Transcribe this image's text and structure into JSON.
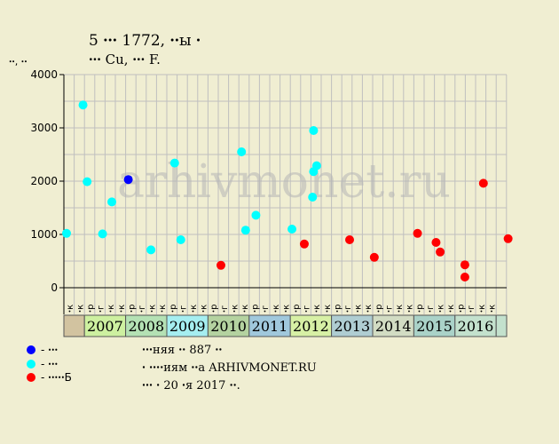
{
  "header": {
    "title": "5 ꞏꞏꞏ 1772, ꞏꞏы ꞏ",
    "subtitle": "ꞏꞏꞏ Cu, ꞏꞏꞏ F."
  },
  "watermark": "arhivmonet.ru",
  "legend": [
    {
      "label": "- ꞏꞏꞏ",
      "color": "#0000ff"
    },
    {
      "label": "- ꞏꞏꞏ",
      "color": "#00ffff"
    },
    {
      "label": "- ꞏꞏꞏꞏꞏБ",
      "color": "#ff0000"
    }
  ],
  "notes": [
    "ꞏꞏꞏняя ꞏꞏ 887 ꞏꞏ",
    "ꞏ ꞏꞏꞏꞏиям ꞏꞏа ARHIVMONET.RU",
    "ꞏꞏꞏ ꞏ 20 ꞏя 2017 ꞏꞏ."
  ],
  "chart_data": {
    "type": "scatter",
    "ylabel": "ꞏꞏ, ꞏꞏ",
    "ylim": [
      0,
      4000
    ],
    "yticks": [
      0,
      1000,
      2000,
      3000,
      4000
    ],
    "grid": true,
    "columns": [
      "ꞏк",
      "ꞏк",
      "ꞏр",
      "ꞏг",
      "ꞏк",
      "ꞏк",
      "ꞏр",
      "ꞏг",
      "ꞏк",
      "ꞏк",
      "ꞏр",
      "ꞏг",
      "ꞏк",
      "ꞏк",
      "ꞏр",
      "ꞏг",
      "ꞏк",
      "ꞏк",
      "ꞏр",
      "ꞏг",
      "ꞏк",
      "ꞏк",
      "ꞏр",
      "ꞏг",
      "ꞏк",
      "ꞏк",
      "ꞏр",
      "ꞏг",
      "ꞏк",
      "ꞏк",
      "ꞏр",
      "ꞏг",
      "ꞏк",
      "ꞏк",
      "ꞏр",
      "ꞏг",
      "ꞏк",
      "ꞏк",
      "ꞏр",
      "ꞏг",
      "ꞏк",
      "ꞏк"
    ],
    "years": [
      {
        "label": "",
        "start": 0,
        "span": 1,
        "color": "#d2c3a0"
      },
      {
        "label": "2007",
        "start": 1,
        "span": 2,
        "color": "#cdf0a0"
      },
      {
        "label": "2008",
        "start": 3,
        "span": 2,
        "color": "#b4e1b4"
      },
      {
        "label": "2009",
        "start": 5,
        "span": 2,
        "color": "#a5eef0"
      },
      {
        "label": "2010",
        "start": 7,
        "span": 2,
        "color": "#b4d2a0"
      },
      {
        "label": "2011",
        "start": 9,
        "span": 2,
        "color": "#a0c8dc"
      },
      {
        "label": "2012",
        "start": 11,
        "span": 2,
        "color": "#d7f0a5"
      },
      {
        "label": "2013",
        "start": 13,
        "span": 2,
        "color": "#afcdd2"
      },
      {
        "label": "2014",
        "start": 15,
        "span": 2,
        "color": "#d2dcc3"
      },
      {
        "label": "2015",
        "start": 17,
        "span": 2,
        "color": "#aad2c8"
      },
      {
        "label": "2016",
        "start": 19,
        "span": 2,
        "color": "#c3e1cd"
      }
    ],
    "series": [
      {
        "name": "ꞏꞏꞏ",
        "color": "#0000ff",
        "points": [
          {
            "col": 3.0,
            "y": 2030
          }
        ]
      },
      {
        "name": "ꞏꞏꞏ",
        "color": "#00ffff",
        "points": [
          {
            "col": 0.0,
            "y": 1020
          },
          {
            "col": 0.8,
            "y": 3430
          },
          {
            "col": 1.0,
            "y": 1990
          },
          {
            "col": 1.75,
            "y": 1010
          },
          {
            "col": 2.2,
            "y": 1610
          },
          {
            "col": 4.1,
            "y": 710
          },
          {
            "col": 5.25,
            "y": 2340
          },
          {
            "col": 5.55,
            "y": 900
          },
          {
            "col": 8.5,
            "y": 2550
          },
          {
            "col": 8.7,
            "y": 1080
          },
          {
            "col": 9.2,
            "y": 1360
          },
          {
            "col": 10.95,
            "y": 1100
          },
          {
            "col": 11.95,
            "y": 1700
          },
          {
            "col": 12.0,
            "y": 2950
          },
          {
            "col": 12.0,
            "y": 2180
          },
          {
            "col": 12.15,
            "y": 2290
          }
        ]
      },
      {
        "name": "ꞏꞏꞏꞏꞏБ",
        "color": "#ff0000",
        "points": [
          {
            "col": 7.5,
            "y": 420
          },
          {
            "col": 11.55,
            "y": 820
          },
          {
            "col": 13.75,
            "y": 900
          },
          {
            "col": 14.95,
            "y": 570
          },
          {
            "col": 17.05,
            "y": 1020
          },
          {
            "col": 17.95,
            "y": 850
          },
          {
            "col": 18.15,
            "y": 670
          },
          {
            "col": 19.35,
            "y": 430
          },
          {
            "col": 19.35,
            "y": 200
          },
          {
            "col": 20.25,
            "y": 1960
          },
          {
            "col": 21.45,
            "y": 920
          }
        ]
      }
    ]
  }
}
